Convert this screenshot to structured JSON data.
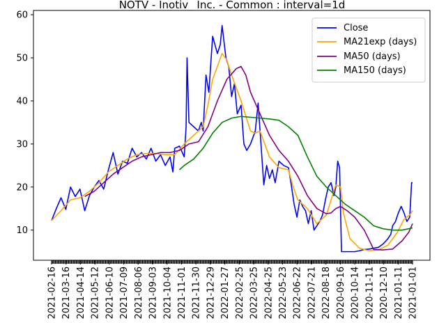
{
  "chart_data": {
    "type": "line",
    "title": "NOTV - Inotiv_ Inc. - Common : interval=1d",
    "xlabel": "",
    "ylabel": "",
    "ylim": [
      3,
      61
    ],
    "y_ticks": [
      10,
      20,
      30,
      40,
      50,
      60
    ],
    "x_tick_labels": [
      "2021-02-16",
      "2021-03-16",
      "2021-04-14",
      "2021-05-12",
      "2021-06-10",
      "2021-07-09",
      "2021-08-06",
      "2021-09-03",
      "2021-10-04",
      "2021-11-01",
      "2021-11-30",
      "2021-12-29",
      "2022-01-27",
      "2022-02-25",
      "2022-03-25",
      "2022-04-25",
      "2022-05-23",
      "2022-06-22",
      "2022-07-21",
      "2022-08-18",
      "2020-09-16",
      "2020-10-14",
      "2020-11-11",
      "2020-12-10",
      "2021-01-11",
      "2021-01-01"
    ],
    "legend": {
      "placement": "top-right"
    },
    "series": [
      {
        "name": "Close",
        "color": "#0000ff",
        "points": [
          [
            0,
            12.2
          ],
          [
            5,
            15
          ],
          [
            10,
            17.5
          ],
          [
            15,
            14.8
          ],
          [
            20,
            20
          ],
          [
            25,
            17.8
          ],
          [
            30,
            19.5
          ],
          [
            35,
            14.5
          ],
          [
            40,
            18
          ],
          [
            45,
            20
          ],
          [
            50,
            21.5
          ],
          [
            55,
            19.5
          ],
          [
            60,
            24
          ],
          [
            65,
            28
          ],
          [
            70,
            23
          ],
          [
            75,
            26
          ],
          [
            80,
            25.5
          ],
          [
            85,
            29
          ],
          [
            90,
            27
          ],
          [
            95,
            28
          ],
          [
            100,
            26.5
          ],
          [
            105,
            29
          ],
          [
            110,
            26
          ],
          [
            115,
            27.5
          ],
          [
            120,
            25
          ],
          [
            125,
            27
          ],
          [
            128,
            23.5
          ],
          [
            130,
            29
          ],
          [
            135,
            29.5
          ],
          [
            138,
            28
          ],
          [
            140,
            27
          ],
          [
            142,
            34
          ],
          [
            143,
            50
          ],
          [
            145,
            35
          ],
          [
            150,
            34
          ],
          [
            155,
            33
          ],
          [
            158,
            35
          ],
          [
            160,
            33
          ],
          [
            163,
            46
          ],
          [
            166,
            42
          ],
          [
            170,
            55
          ],
          [
            175,
            51
          ],
          [
            178,
            53
          ],
          [
            180,
            57.5
          ],
          [
            184,
            50
          ],
          [
            187,
            48
          ],
          [
            190,
            41
          ],
          [
            193,
            44
          ],
          [
            196,
            37
          ],
          [
            200,
            39
          ],
          [
            203,
            30
          ],
          [
            206,
            28.5
          ],
          [
            210,
            30
          ],
          [
            215,
            33
          ],
          [
            218,
            39.5
          ],
          [
            221,
            30
          ],
          [
            224,
            20.5
          ],
          [
            227,
            25
          ],
          [
            230,
            22
          ],
          [
            233,
            24
          ],
          [
            236,
            21
          ],
          [
            240,
            26
          ],
          [
            245,
            25
          ],
          [
            250,
            24.5
          ],
          [
            253,
            20.5
          ],
          [
            256,
            16
          ],
          [
            259,
            13
          ],
          [
            262,
            17
          ],
          [
            265,
            15.5
          ],
          [
            268,
            14.5
          ],
          [
            271,
            11.5
          ],
          [
            274,
            14.5
          ],
          [
            277,
            10
          ],
          [
            280,
            11
          ],
          [
            283,
            12
          ],
          [
            286,
            13.5
          ],
          [
            289,
            17
          ],
          [
            292,
            20
          ],
          [
            295,
            21
          ],
          [
            298,
            18
          ],
          [
            300,
            20
          ],
          [
            302,
            26
          ],
          [
            304,
            24.5
          ],
          [
            306,
            5
          ],
          [
            310,
            5
          ],
          [
            315,
            5
          ],
          [
            320,
            5
          ],
          [
            325,
            5.2
          ],
          [
            330,
            5.5
          ],
          [
            335,
            5.6
          ],
          [
            340,
            5.8
          ],
          [
            345,
            6
          ],
          [
            350,
            6.8
          ],
          [
            355,
            8
          ],
          [
            358,
            9
          ],
          [
            360,
            11
          ],
          [
            363,
            12
          ],
          [
            366,
            14
          ],
          [
            369,
            15.5
          ],
          [
            372,
            14
          ],
          [
            375,
            12
          ],
          [
            378,
            13
          ],
          [
            380,
            21
          ],
          [
            381,
            21
          ]
        ]
      },
      {
        "name": "MA21exp (days)",
        "color": "#ffa500",
        "points": [
          [
            0,
            12.2
          ],
          [
            10,
            14.5
          ],
          [
            20,
            17
          ],
          [
            30,
            17.5
          ],
          [
            40,
            19
          ],
          [
            50,
            21
          ],
          [
            60,
            23.5
          ],
          [
            70,
            25
          ],
          [
            80,
            26.5
          ],
          [
            90,
            27.5
          ],
          [
            100,
            27.8
          ],
          [
            110,
            27.8
          ],
          [
            120,
            27.5
          ],
          [
            130,
            27.5
          ],
          [
            140,
            30
          ],
          [
            150,
            32
          ],
          [
            160,
            34
          ],
          [
            165,
            39
          ],
          [
            170,
            45
          ],
          [
            175,
            48
          ],
          [
            180,
            51
          ],
          [
            185,
            49.5
          ],
          [
            190,
            46
          ],
          [
            200,
            40
          ],
          [
            210,
            33
          ],
          [
            215,
            32.5
          ],
          [
            220,
            33
          ],
          [
            225,
            30
          ],
          [
            230,
            27
          ],
          [
            240,
            24.5
          ],
          [
            250,
            24
          ],
          [
            255,
            20
          ],
          [
            260,
            17
          ],
          [
            270,
            15
          ],
          [
            280,
            11.5
          ],
          [
            290,
            13.5
          ],
          [
            295,
            17
          ],
          [
            300,
            20.5
          ],
          [
            305,
            20
          ],
          [
            308,
            14
          ],
          [
            315,
            8
          ],
          [
            325,
            5.8
          ],
          [
            335,
            5.2
          ],
          [
            345,
            5.4
          ],
          [
            355,
            6.5
          ],
          [
            365,
            9.5
          ],
          [
            372,
            12.5
          ],
          [
            378,
            13.5
          ],
          [
            381,
            14.5
          ]
        ]
      },
      {
        "name": "MA50 (days)",
        "color": "#800080",
        "points": [
          [
            35,
            17.8
          ],
          [
            45,
            19
          ],
          [
            55,
            21
          ],
          [
            65,
            23
          ],
          [
            75,
            24.5
          ],
          [
            85,
            26
          ],
          [
            95,
            27
          ],
          [
            105,
            27.5
          ],
          [
            115,
            28
          ],
          [
            125,
            28
          ],
          [
            135,
            28.5
          ],
          [
            145,
            30
          ],
          [
            155,
            30.5
          ],
          [
            165,
            34
          ],
          [
            175,
            40
          ],
          [
            185,
            45
          ],
          [
            195,
            47.5
          ],
          [
            200,
            48
          ],
          [
            205,
            46
          ],
          [
            210,
            42
          ],
          [
            220,
            37
          ],
          [
            230,
            32
          ],
          [
            240,
            28.5
          ],
          [
            250,
            26
          ],
          [
            260,
            22.5
          ],
          [
            270,
            18
          ],
          [
            280,
            15
          ],
          [
            290,
            13.8
          ],
          [
            295,
            14
          ],
          [
            300,
            15
          ],
          [
            305,
            15.5
          ],
          [
            312,
            14.5
          ],
          [
            320,
            13
          ],
          [
            330,
            10
          ],
          [
            340,
            5.5
          ],
          [
            350,
            5.4
          ],
          [
            360,
            5.6
          ],
          [
            370,
            7.5
          ],
          [
            377,
            9.5
          ],
          [
            381,
            11.5
          ]
        ]
      },
      {
        "name": "MA150 (days)",
        "color": "#008000",
        "points": [
          [
            135,
            24
          ],
          [
            140,
            25
          ],
          [
            150,
            26.5
          ],
          [
            160,
            29
          ],
          [
            170,
            32.5
          ],
          [
            180,
            35
          ],
          [
            190,
            36
          ],
          [
            200,
            36.4
          ],
          [
            210,
            36.2
          ],
          [
            220,
            36
          ],
          [
            230,
            35.8
          ],
          [
            240,
            35.5
          ],
          [
            250,
            34
          ],
          [
            260,
            32
          ],
          [
            270,
            27
          ],
          [
            280,
            22.5
          ],
          [
            290,
            20
          ],
          [
            300,
            18
          ],
          [
            310,
            16
          ],
          [
            320,
            14.5
          ],
          [
            330,
            13
          ],
          [
            340,
            11
          ],
          [
            350,
            10.3
          ],
          [
            360,
            10
          ],
          [
            370,
            10
          ],
          [
            381,
            10.5
          ]
        ]
      }
    ]
  }
}
